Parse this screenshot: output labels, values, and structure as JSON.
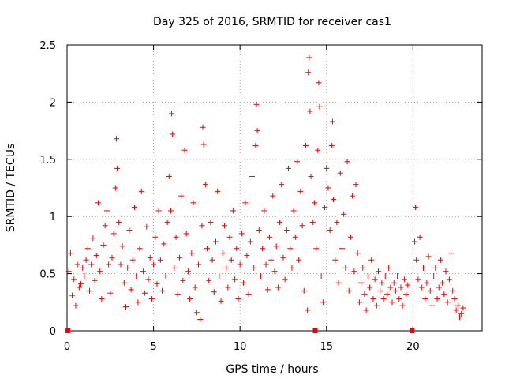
{
  "chart_data": {
    "type": "scatter",
    "title": "Day 325 of 2016, SRMTID for receiver cas1",
    "xlabel": "GPS time / hours",
    "ylabel": "SRMTID / TECUs",
    "xlim": [
      0,
      24
    ],
    "ylim": [
      0,
      2.5
    ],
    "xticks": [
      0,
      5,
      10,
      15,
      20
    ],
    "xtick_labels": [
      "0",
      "5",
      "10",
      "15",
      "20"
    ],
    "yticks": [
      0,
      0.5,
      1,
      1.5,
      2,
      2.5
    ],
    "ytick_labels": [
      "0",
      "0.5",
      "1",
      "1.5",
      "2",
      "2.5"
    ],
    "grid": true,
    "marker": "plus",
    "color": "#ee0000",
    "series": [
      {
        "name": "SRMTID",
        "points": [
          [
            0.1,
            0.52
          ],
          [
            0.2,
            0.68
          ],
          [
            0.3,
            0.31
          ],
          [
            0.4,
            0.45
          ],
          [
            0.5,
            0.22
          ],
          [
            0.6,
            0.58
          ],
          [
            0.7,
            0.38
          ],
          [
            0.8,
            0.41
          ],
          [
            0.9,
            0.55
          ],
          [
            1.0,
            0.48
          ],
          [
            1.1,
            0.62
          ],
          [
            1.2,
            0.72
          ],
          [
            1.3,
            0.35
          ],
          [
            1.4,
            0.58
          ],
          [
            1.5,
            0.81
          ],
          [
            1.6,
            0.44
          ],
          [
            1.7,
            0.66
          ],
          [
            1.8,
            1.12
          ],
          [
            1.9,
            0.52
          ],
          [
            2.0,
            0.28
          ],
          [
            2.1,
            0.75
          ],
          [
            2.2,
            0.92
          ],
          [
            2.3,
            1.05
          ],
          [
            2.4,
            0.58
          ],
          [
            2.5,
            0.33
          ],
          [
            2.6,
            0.64
          ],
          [
            2.7,
            0.85
          ],
          [
            2.8,
            1.25
          ],
          [
            2.85,
            1.68
          ],
          [
            2.9,
            1.42
          ],
          [
            3.0,
            0.95
          ],
          [
            3.1,
            0.58
          ],
          [
            3.2,
            0.74
          ],
          [
            3.3,
            0.42
          ],
          [
            3.4,
            0.21
          ],
          [
            3.5,
            0.55
          ],
          [
            3.6,
            0.88
          ],
          [
            3.7,
            0.36
          ],
          [
            3.8,
            0.62
          ],
          [
            3.9,
            1.08
          ],
          [
            4.0,
            0.48
          ],
          [
            4.1,
            0.25
          ],
          [
            4.2,
            0.72
          ],
          [
            4.3,
            1.22
          ],
          [
            4.4,
            0.52
          ],
          [
            4.5,
            0.33
          ],
          [
            4.6,
            0.91
          ],
          [
            4.7,
            0.45
          ],
          [
            4.8,
            0.64
          ],
          [
            4.9,
            0.28
          ],
          [
            5.0,
            0.58
          ],
          [
            5.1,
            0.82
          ],
          [
            5.2,
            0.41
          ],
          [
            5.3,
            1.05
          ],
          [
            5.4,
            0.62
          ],
          [
            5.5,
            0.35
          ],
          [
            5.6,
            0.76
          ],
          [
            5.7,
            0.48
          ],
          [
            5.8,
            0.95
          ],
          [
            5.9,
            1.35
          ],
          [
            6.0,
            1.05
          ],
          [
            6.05,
            1.9
          ],
          [
            6.1,
            1.72
          ],
          [
            6.2,
            0.55
          ],
          [
            6.3,
            0.82
          ],
          [
            6.4,
            0.32
          ],
          [
            6.5,
            0.64
          ],
          [
            6.6,
            1.18
          ],
          [
            6.7,
            0.44
          ],
          [
            6.8,
            1.58
          ],
          [
            6.9,
            0.85
          ],
          [
            7.0,
            0.52
          ],
          [
            7.1,
            0.28
          ],
          [
            7.2,
            0.68
          ],
          [
            7.3,
            1.12
          ],
          [
            7.4,
            0.38
          ],
          [
            7.5,
            0.16
          ],
          [
            7.6,
            0.58
          ],
          [
            7.7,
            0.1
          ],
          [
            7.8,
            0.92
          ],
          [
            7.85,
            1.78
          ],
          [
            7.9,
            1.63
          ],
          [
            8.0,
            1.28
          ],
          [
            8.1,
            0.72
          ],
          [
            8.2,
            0.44
          ],
          [
            8.3,
            0.95
          ],
          [
            8.4,
            0.62
          ],
          [
            8.5,
            0.34
          ],
          [
            8.6,
            0.78
          ],
          [
            8.7,
            1.22
          ],
          [
            8.8,
            0.48
          ],
          [
            8.9,
            0.26
          ],
          [
            9.0,
            0.68
          ],
          [
            9.1,
            0.92
          ],
          [
            9.2,
            0.55
          ],
          [
            9.3,
            0.38
          ],
          [
            9.4,
            0.82
          ],
          [
            9.5,
            0.62
          ],
          [
            9.6,
            1.05
          ],
          [
            9.7,
            0.45
          ],
          [
            9.8,
            0.72
          ],
          [
            9.9,
            0.28
          ],
          [
            10.0,
            0.58
          ],
          [
            10.1,
            0.85
          ],
          [
            10.2,
            0.42
          ],
          [
            10.3,
            1.12
          ],
          [
            10.4,
            0.66
          ],
          [
            10.5,
            0.32
          ],
          [
            10.6,
            0.78
          ],
          [
            10.7,
            1.35
          ],
          [
            10.8,
            0.55
          ],
          [
            10.9,
            1.62
          ],
          [
            10.95,
            1.98
          ],
          [
            11.0,
            1.75
          ],
          [
            11.1,
            0.88
          ],
          [
            11.2,
            0.48
          ],
          [
            11.3,
            0.72
          ],
          [
            11.4,
            1.05
          ],
          [
            11.5,
            0.58
          ],
          [
            11.6,
            0.36
          ],
          [
            11.7,
            0.82
          ],
          [
            11.8,
            0.62
          ],
          [
            11.9,
            1.18
          ],
          [
            12.0,
            0.52
          ],
          [
            12.1,
            0.74
          ],
          [
            12.2,
            0.38
          ],
          [
            12.3,
            0.95
          ],
          [
            12.4,
            1.28
          ],
          [
            12.5,
            0.64
          ],
          [
            12.6,
            0.45
          ],
          [
            12.7,
            0.88
          ],
          [
            12.8,
            1.42
          ],
          [
            12.9,
            0.72
          ],
          [
            13.0,
            0.55
          ],
          [
            13.1,
            1.05
          ],
          [
            13.2,
            0.82
          ],
          [
            13.3,
            1.48
          ],
          [
            13.4,
            0.62
          ],
          [
            13.5,
            1.22
          ],
          [
            13.6,
            0.92
          ],
          [
            13.7,
            0.35
          ],
          [
            13.8,
            1.62
          ],
          [
            13.9,
            0.18
          ],
          [
            13.95,
            2.26
          ],
          [
            14.0,
            2.39
          ],
          [
            14.05,
            1.92
          ],
          [
            14.1,
            1.35
          ],
          [
            14.2,
            0.95
          ],
          [
            14.3,
            1.12
          ],
          [
            14.4,
            0.72
          ],
          [
            14.5,
            1.58
          ],
          [
            14.55,
            2.17
          ],
          [
            14.6,
            1.96
          ],
          [
            14.7,
            0.48
          ],
          [
            14.8,
            0.25
          ],
          [
            14.9,
            1.08
          ],
          [
            15.0,
            1.42
          ],
          [
            15.1,
            1.25
          ],
          [
            15.2,
            0.88
          ],
          [
            15.3,
            1.62
          ],
          [
            15.35,
            1.83
          ],
          [
            15.4,
            1.15
          ],
          [
            15.5,
            0.62
          ],
          [
            15.6,
            0.95
          ],
          [
            15.7,
            0.42
          ],
          [
            15.8,
            1.38
          ],
          [
            15.9,
            0.72
          ],
          [
            16.0,
            1.02
          ],
          [
            16.1,
            0.55
          ],
          [
            16.2,
            1.48
          ],
          [
            16.3,
            0.35
          ],
          [
            16.4,
            0.82
          ],
          [
            16.5,
            1.18
          ],
          [
            16.6,
            0.52
          ],
          [
            16.7,
            1.28
          ],
          [
            16.8,
            0.68
          ],
          [
            16.9,
            0.25
          ],
          [
            17.0,
            0.42
          ],
          [
            17.1,
            0.55
          ],
          [
            17.2,
            0.32
          ],
          [
            17.3,
            0.18
          ],
          [
            17.4,
            0.48
          ],
          [
            17.5,
            0.38
          ],
          [
            17.6,
            0.62
          ],
          [
            17.7,
            0.28
          ],
          [
            17.8,
            0.45
          ],
          [
            17.9,
            0.22
          ],
          [
            18.0,
            0.52
          ],
          [
            18.1,
            0.35
          ],
          [
            18.2,
            0.42
          ],
          [
            18.3,
            0.28
          ],
          [
            18.4,
            0.48
          ],
          [
            18.5,
            0.32
          ],
          [
            18.6,
            0.55
          ],
          [
            18.7,
            0.38
          ],
          [
            18.8,
            0.25
          ],
          [
            18.9,
            0.42
          ],
          [
            19.0,
            0.35
          ],
          [
            19.1,
            0.48
          ],
          [
            19.2,
            0.28
          ],
          [
            19.3,
            0.38
          ],
          [
            19.4,
            0.22
          ],
          [
            19.5,
            0.45
          ],
          [
            19.6,
            0.32
          ],
          [
            19.7,
            0.4
          ],
          [
            20.1,
            0.78
          ],
          [
            20.15,
            1.08
          ],
          [
            20.2,
            0.62
          ],
          [
            20.3,
            0.45
          ],
          [
            20.4,
            0.82
          ],
          [
            20.5,
            0.38
          ],
          [
            20.6,
            0.55
          ],
          [
            20.7,
            0.28
          ],
          [
            20.8,
            0.42
          ],
          [
            20.9,
            0.65
          ],
          [
            21.0,
            0.35
          ],
          [
            21.1,
            0.22
          ],
          [
            21.2,
            0.48
          ],
          [
            21.3,
            0.55
          ],
          [
            21.4,
            0.28
          ],
          [
            21.5,
            0.38
          ],
          [
            21.6,
            0.62
          ],
          [
            21.7,
            0.42
          ],
          [
            21.8,
            0.32
          ],
          [
            21.9,
            0.52
          ],
          [
            22.0,
            0.25
          ],
          [
            22.1,
            0.45
          ],
          [
            22.2,
            0.68
          ],
          [
            22.3,
            0.35
          ],
          [
            22.4,
            0.28
          ],
          [
            22.5,
            0.18
          ],
          [
            22.6,
            0.22
          ],
          [
            22.7,
            0.12
          ],
          [
            22.8,
            0.15
          ],
          [
            22.9,
            0.2
          ]
        ]
      }
    ],
    "outliers": [
      {
        "x": 0.05,
        "y": 0.0
      },
      {
        "x": 14.35,
        "y": 0.0
      },
      {
        "x": 19.95,
        "y": 0.0
      }
    ]
  }
}
